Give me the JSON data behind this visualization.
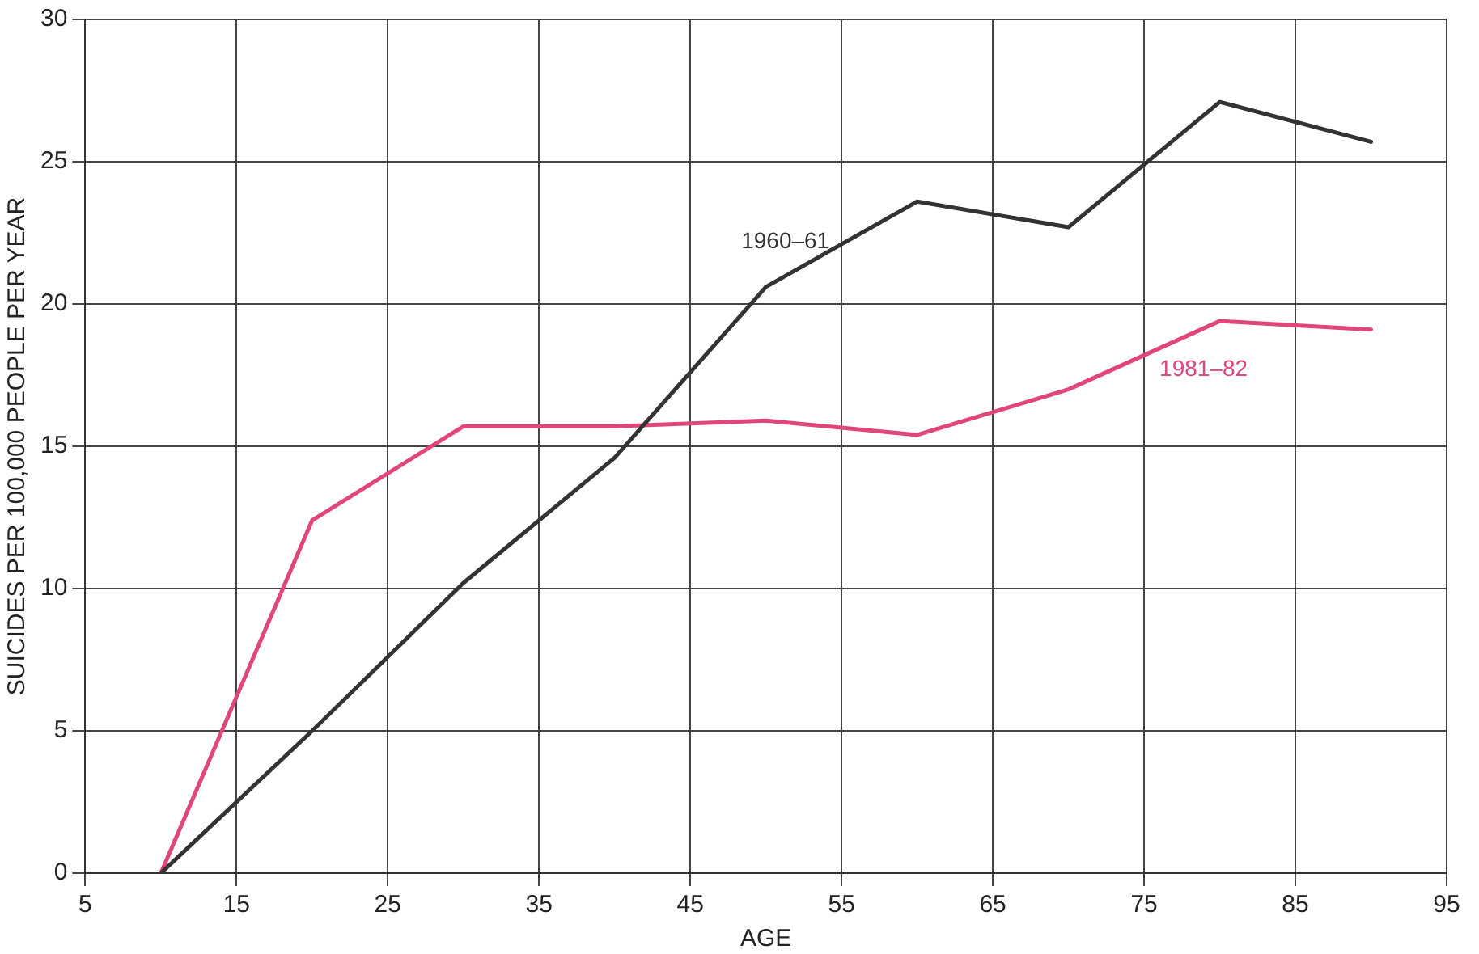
{
  "chart_data": {
    "type": "line",
    "xlabel": "AGE",
    "ylabel": "SUICIDES PER 100,000 PEOPLE PER YEAR",
    "x": [
      10,
      20,
      30,
      40,
      50,
      60,
      70,
      80,
      90
    ],
    "series": [
      {
        "name": "1960–61",
        "color": "#333333",
        "values": [
          0,
          5.0,
          10.2,
          14.6,
          20.6,
          23.6,
          22.7,
          27.1,
          25.7
        ]
      },
      {
        "name": "1981–82",
        "color": "#e0457b",
        "values": [
          0,
          12.4,
          15.7,
          15.7,
          15.9,
          15.4,
          17.0,
          19.4,
          19.1
        ]
      }
    ],
    "xlim": [
      5,
      95
    ],
    "xticks": [
      5,
      15,
      25,
      35,
      45,
      55,
      65,
      75,
      85,
      95
    ],
    "ylim": [
      0,
      30
    ],
    "yticks": [
      0,
      5,
      10,
      15,
      20,
      25,
      30
    ],
    "grid": true,
    "legend": false,
    "marker": "none",
    "line_style": "solid"
  }
}
